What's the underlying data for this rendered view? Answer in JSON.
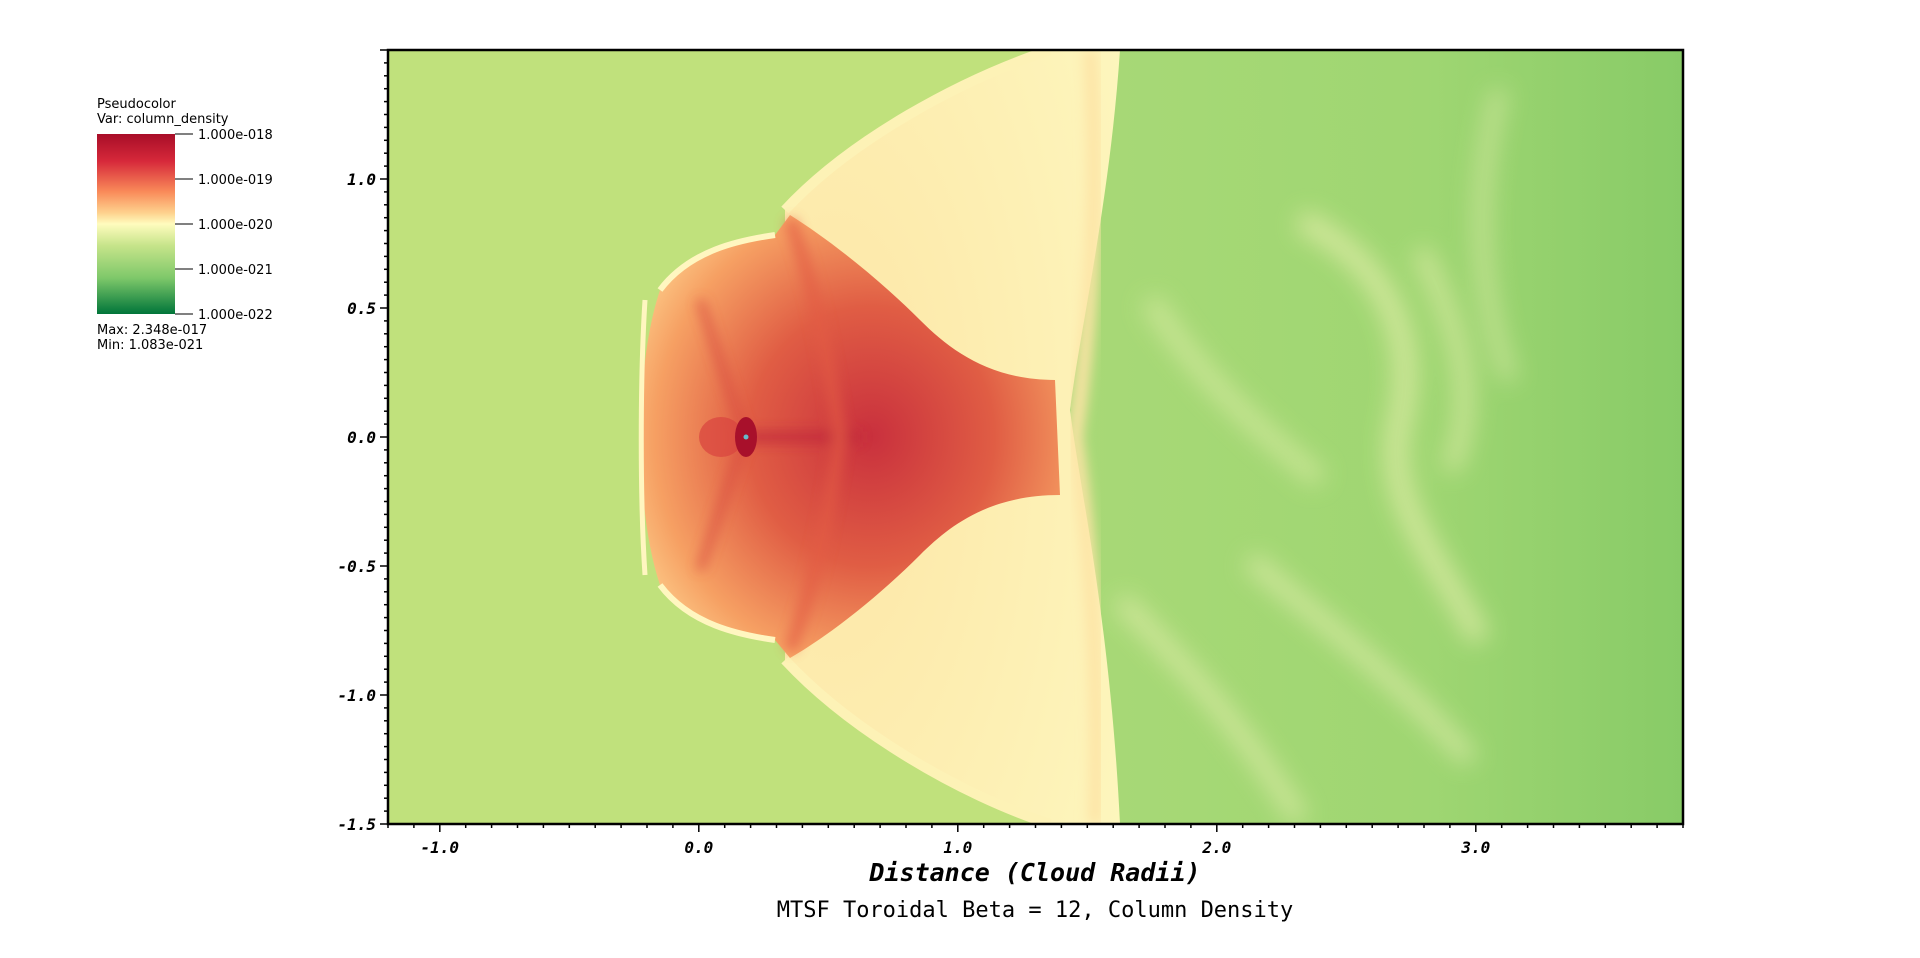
{
  "chart_data": {
    "type": "heatmap",
    "xlabel": "Distance (Cloud Radii)",
    "caption": "MTSF Toroidal Beta = 12, Column Density",
    "xlim": [
      -1.2,
      3.8
    ],
    "ylim": [
      -1.5,
      1.5
    ],
    "x_ticks": [
      -1.0,
      0.0,
      1.0,
      2.0,
      3.0
    ],
    "x_tick_labels": [
      "-1.0",
      "0.0",
      "1.0",
      "2.0",
      "3.0"
    ],
    "y_ticks": [
      1.0,
      0.5,
      0.0,
      -0.5,
      -1.0,
      -1.5
    ],
    "y_tick_labels": [
      "1.0",
      "0.5",
      "0.0",
      "-0.5",
      "-1.0",
      "-1.5"
    ],
    "colormap": [
      "#00753a",
      "#7ec86a",
      "#c6e48a",
      "#fffcbe",
      "#fed38f",
      "#f98a59",
      "#d6283a",
      "#a80d28"
    ],
    "legend": {
      "plot_type": "Pseudocolor",
      "variable": "Var: column_density",
      "levels": [
        "1.000e-018",
        "1.000e-019",
        "1.000e-020",
        "1.000e-021",
        "1.000e-022"
      ],
      "max_label": "Max:  2.348e-017",
      "min_label": "Min:  1.083e-021"
    },
    "grid": false,
    "ambient_color": "#c0e17c",
    "cloud_core_color": "#a8102b",
    "wake_color": "#8fd06a"
  }
}
